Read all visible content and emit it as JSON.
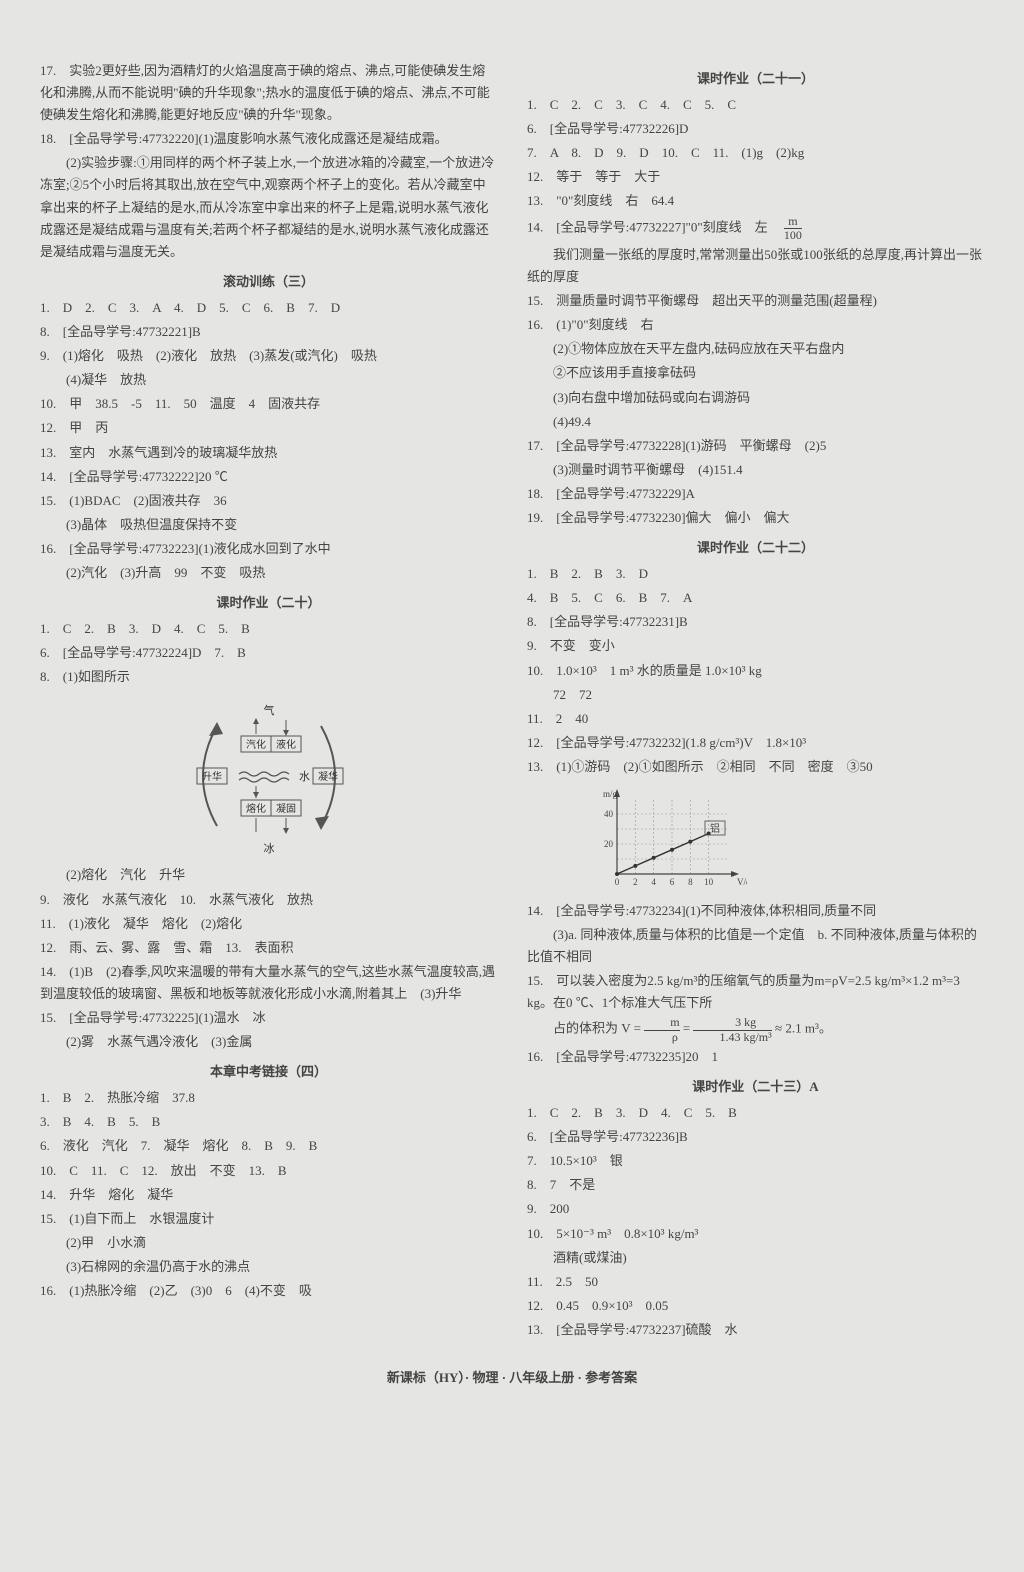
{
  "left": {
    "q17": "17.　实验2更好些,因为酒精灯的火焰温度高于碘的熔点、沸点,可能使碘发生熔化和沸腾,从而不能说明\"碘的升华现象\";热水的温度低于碘的熔点、沸点,不可能使碘发生熔化和沸腾,能更好地反应\"碘的升华\"现象。",
    "q18a": "18.　[全品导学号:47732220](1)温度影响水蒸气液化成露还是凝结成霜。",
    "q18b": "(2)实验步骤:①用同样的两个杯子装上水,一个放进冰箱的冷藏室,一个放进冷冻室;②5个小时后将其取出,放在空气中,观察两个杯子上的变化。若从冷藏室中拿出来的杯子上凝结的是水,而从冷冻室中拿出来的杯子上是霜,说明水蒸气液化成露还是凝结成霜与温度有关;若两个杯子都凝结的是水,说明水蒸气液化成露还是凝结成霜与温度无关。",
    "sec_roll3": "滚动训练（三）",
    "r3_1": "1.　D　2.　C　3.　A　4.　D　5.　C　6.　B　7.　D",
    "r3_8": "8.　[全品导学号:47732221]B",
    "r3_9a": "9.　(1)熔化　吸热　(2)液化　放热　(3)蒸发(或汽化)　吸热",
    "r3_9b": "(4)凝华　放热",
    "r3_10": "10.　甲　38.5　-5　11.　50　温度　4　固液共存",
    "r3_12": "12.　甲　丙",
    "r3_13": "13.　室内　水蒸气遇到冷的玻璃凝华放热",
    "r3_14": "14.　[全品导学号:47732222]20 ℃",
    "r3_15a": "15.　(1)BDAC　(2)固液共存　36",
    "r3_15b": "(3)晶体　吸热但温度保持不变",
    "r3_16a": "16.　[全品导学号:47732223](1)液化成水回到了水中",
    "r3_16b": "(2)汽化　(3)升高　99　不变　吸热",
    "sec_hw20": "课时作业（二十）",
    "hw20_1": "1.　C　2.　B　3.　D　4.　C　5.　B",
    "hw20_6": "6.　[全品导学号:47732224]D　7.　B",
    "hw20_8": "8.　(1)如图所示",
    "hw20_8b": "(2)熔化　汽化　升华",
    "hw20_9": "9.　液化　水蒸气液化　10.　水蒸气液化　放热",
    "hw20_11": "11.　(1)液化　凝华　熔化　(2)熔化",
    "hw20_12": "12.　雨、云、雾、露　雪、霜　13.　表面积",
    "hw20_14a": "14.　(1)B　(2)春季,风吹来温暖的带有大量水蒸气的空气,这些水蒸气温度较高,遇到温度较低的玻璃窗、黑板和地板等就液化形成小水滴,附着其上　(3)升华",
    "hw20_15a": "15.　[全品导学号:47732225](1)温水　冰",
    "hw20_15b": "(2)雾　水蒸气遇冷液化　(3)金属",
    "sec_link4": "本章中考链接（四）",
    "lk4_1": "1.　B　2.　热胀冷缩　37.8",
    "lk4_3": "3.　B　4.　B　5.　B",
    "lk4_6": "6.　液化　汽化　7.　凝华　熔化　8.　B　9.　B",
    "lk4_10": "10.　C　11.　C　12.　放出　不变　13.　B",
    "lk4_14": "14.　升华　熔化　凝华",
    "lk4_15a": "15.　(1)自下而上　水银温度计",
    "lk4_15b": "(2)甲　小水滴",
    "lk4_15c": "(3)石棉网的余温仍高于水的沸点",
    "lk4_16": "16.　(1)热胀冷缩　(2)乙　(3)0　6　(4)不变　吸"
  },
  "right": {
    "sec_hw21": "课时作业（二十一）",
    "hw21_1": "1.　C　2.　C　3.　C　4.　C　5.　C",
    "hw21_6": "6.　[全品导学号:47732226]D",
    "hw21_7": "7.　A　8.　D　9.　D　10.　C　11.　(1)g　(2)kg",
    "hw21_12": "12.　等于　等于　大于",
    "hw21_13": "13.　\"0\"刻度线　右　64.4",
    "hw21_14a": "14.　[全品导学号:47732227]\"0\"刻度线　左　",
    "hw21_14b": "我们测量一张纸的厚度时,常常测量出50张或100张纸的总厚度,再计算出一张纸的厚度",
    "hw21_15": "15.　测量质量时调节平衡螺母　超出天平的测量范围(超量程)",
    "hw21_16a": "16.　(1)\"0\"刻度线　右",
    "hw21_16b": "(2)①物体应放在天平左盘内,砝码应放在天平右盘内",
    "hw21_16c": "②不应该用手直接拿砝码",
    "hw21_16d": "(3)向右盘中增加砝码或向右调游码",
    "hw21_16e": "(4)49.4",
    "hw21_17a": "17.　[全品导学号:47732228](1)游码　平衡螺母　(2)5",
    "hw21_17b": "(3)测量时调节平衡螺母　(4)151.4",
    "hw21_18": "18.　[全品导学号:47732229]A",
    "hw21_19": "19.　[全品导学号:47732230]偏大　偏小　偏大",
    "sec_hw22": "课时作业（二十二）",
    "hw22_1": "1.　B　2.　B　3.　D",
    "hw22_4": "4.　B　5.　C　6.　B　7.　A",
    "hw22_8": "8.　[全品导学号:47732231]B",
    "hw22_9": "9.　不变　变小",
    "hw22_10a": "10.　1.0×10³　1 m³ 水的质量是 1.0×10³ kg",
    "hw22_10b": "72　72",
    "hw22_11": "11.　2　40",
    "hw22_12": "12.　[全品导学号:47732232](1.8 g/cm³)V　1.8×10³",
    "hw22_13": "13.　(1)①游码　(2)①如图所示　②相同　不同　密度　③50",
    "hw22_14a": "14.　[全品导学号:47732234](1)不同种液体,体积相同,质量不同",
    "hw22_14b": "(3)a. 同种液体,质量与体积的比值是一个定值　b. 不同种液体,质量与体积的比值不相同",
    "hw22_15a": "15.　可以装入密度为2.5 kg/m³的压缩氧气的质量为m=ρV=2.5 kg/m³×1.2 m³=3 kg。在0 ℃、1个标准大气压下所",
    "hw22_15b_pre": "占的体积为 V = ",
    "hw22_15b_num": "m",
    "hw22_15b_den": "ρ",
    "hw22_15b_eq": " = ",
    "hw22_15b_num2": "3 kg",
    "hw22_15b_den2": "1.43 kg/m³",
    "hw22_15b_post": " ≈ 2.1 m³。",
    "hw22_16": "16.　[全品导学号:47732235]20　1",
    "sec_hw23": "课时作业（二十三）A",
    "hw23_1": "1.　C　2.　B　3.　D　4.　C　5.　B",
    "hw23_6": "6.　[全品导学号:47732236]B",
    "hw23_7": "7.　10.5×10³　银",
    "hw23_8": "8.　7　不是",
    "hw23_9": "9.　200",
    "hw23_10a": "10.　5×10⁻³ m³　0.8×10³ kg/m³",
    "hw23_10b": "酒精(或煤油)",
    "hw23_11": "11.　2.5　50",
    "hw23_12": "12.　0.45　0.9×10³　0.05",
    "hw23_13": "13.　[全品导学号:47732237]硫酸　水"
  },
  "footer": "新课标（HY）· 物理 · 八年级上册 · 参考答案",
  "diagram1": {
    "labels": {
      "top": "气",
      "bottom": "冰",
      "mid": "水",
      "qh": "汽化",
      "yh": "液化",
      "rh": "熔化",
      "ng": "凝固",
      "sh": "升华",
      "nh": "凝华"
    },
    "colors": {
      "stroke": "#555",
      "fill": "#e5e5e3",
      "text": "#333"
    },
    "fontsize": 11
  },
  "diagram2": {
    "xlabel": "V/cm³",
    "ylabel": "m/g",
    "xticks": [
      "0",
      "2",
      "4",
      "6",
      "8",
      "10"
    ],
    "yticks": [
      "20",
      "40"
    ],
    "series_label": "铝",
    "colors": {
      "axis": "#444",
      "grid": "#999",
      "line": "#333",
      "marker": "#333"
    },
    "line_points": [
      [
        0,
        0
      ],
      [
        2,
        5.4
      ],
      [
        4,
        10.8
      ],
      [
        6,
        16.2
      ],
      [
        8,
        21.6
      ],
      [
        10,
        27
      ]
    ],
    "ylim": [
      0,
      50
    ],
    "xlim": [
      0,
      12
    ]
  },
  "frac_m_100": {
    "num": "m",
    "den": "100"
  }
}
